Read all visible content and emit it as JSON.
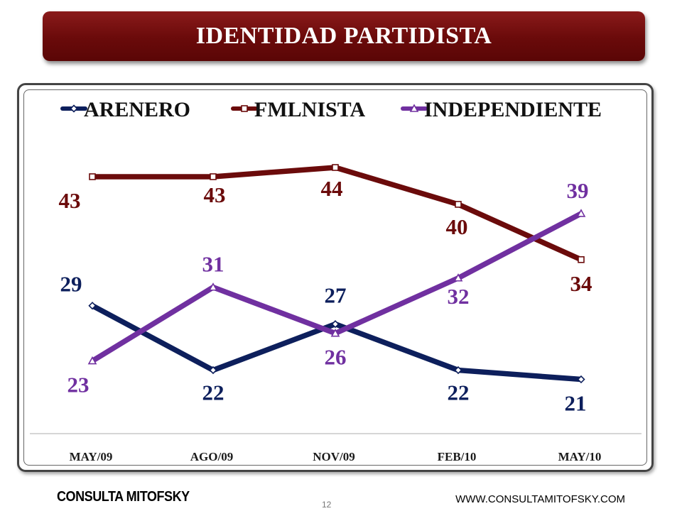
{
  "header": {
    "title": "IDENTIDAD PARTIDISTA"
  },
  "footer": {
    "brand": "CONSULTA MITOFSKY",
    "page_number": "12",
    "website": "WWW.CONSULTAMITOFSKY.COM"
  },
  "chart_data": {
    "type": "line",
    "x": [
      "MAY/09",
      "AGO/09",
      "NOV/09",
      "FEB/10",
      "MAY/10"
    ],
    "series": [
      {
        "name": "ARENERO",
        "values": [
          29,
          22,
          27,
          22,
          21
        ],
        "color": "#0d1f5c",
        "marker": "diamond"
      },
      {
        "name": "FMLNISTA",
        "values": [
          43,
          43,
          44,
          40,
          34
        ],
        "color": "#6b0b0b",
        "marker": "square"
      },
      {
        "name": "INDEPENDIENTE",
        "values": [
          23,
          31,
          26,
          32,
          39
        ],
        "color": "#7030a0",
        "marker": "triangle"
      }
    ],
    "legend_position": "top",
    "grid": false
  }
}
